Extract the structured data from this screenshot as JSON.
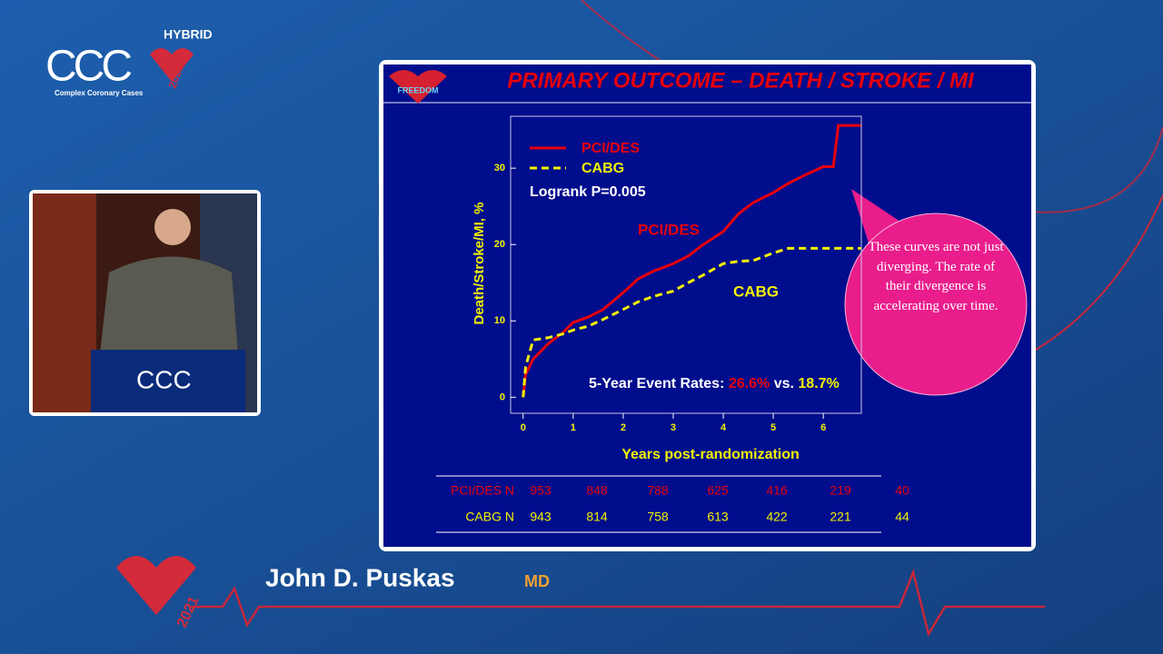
{
  "branding": {
    "hybrid": "HYBRID",
    "logo": "CCC",
    "tagline": "Complex Coronary Cases",
    "year": "2021"
  },
  "speaker": {
    "name": "John D. Puskas",
    "credential": "MD"
  },
  "slide": {
    "title": "PRIMARY OUTCOME – DEATH / STROKE / MI",
    "badge": "FREEDOM",
    "callout": "These curves are not just diverging. The rate of their divergence is accelerating over time."
  },
  "chart_data": {
    "type": "line",
    "x_label": "Years post-randomization",
    "y_label": "Death/Stroke/MI, %",
    "x": [
      0,
      0.05,
      0.2,
      0.5,
      0.8,
      1,
      1.3,
      1.6,
      2,
      2.3,
      2.6,
      3,
      3.3,
      3.6,
      4,
      4.3,
      4.6,
      5,
      5.3,
      5.6,
      6,
      6.2,
      6.3,
      6.75
    ],
    "series": [
      {
        "name": "PCI/DES",
        "color": "#e8000a",
        "dash": false,
        "values": [
          0,
          3,
          5,
          7,
          8.5,
          9.8,
          10.5,
          11.5,
          13.7,
          15.5,
          16.5,
          17.5,
          18.5,
          20,
          21.7,
          24,
          25.5,
          26.8,
          28,
          29,
          30.2,
          30.2,
          35.6,
          35.6
        ]
      },
      {
        "name": "CABG",
        "color": "#f2f200",
        "dash": true,
        "values": [
          0,
          4,
          7.5,
          7.8,
          8.3,
          8.8,
          9.3,
          10.2,
          11.5,
          12.5,
          13.2,
          13.9,
          15,
          16,
          17.5,
          17.8,
          17.9,
          18.9,
          19.5,
          19.5,
          19.5,
          19.5,
          19.5,
          19.5
        ]
      }
    ],
    "xlim": [
      -0.25,
      6.76
    ],
    "ylim": [
      -2.1,
      36.8
    ],
    "xticks": [
      0,
      1,
      2,
      3,
      4,
      5,
      6
    ],
    "yticks": [
      0,
      10,
      20,
      30
    ],
    "grid": false,
    "legend": "upper left",
    "annotations": {
      "logrank": "Logrank P=0.005",
      "event_rates": "5-Year Event Rates:",
      "pci_rate": "26.6%",
      "vs": "vs.",
      "cabg_rate": "18.7%"
    },
    "risk_table": {
      "rows": [
        {
          "label": "PCI/DES N",
          "values": [
            953,
            848,
            788,
            625,
            416,
            219,
            40
          ]
        },
        {
          "label": "CABG N",
          "values": [
            943,
            814,
            758,
            613,
            422,
            221,
            44
          ]
        }
      ]
    }
  }
}
